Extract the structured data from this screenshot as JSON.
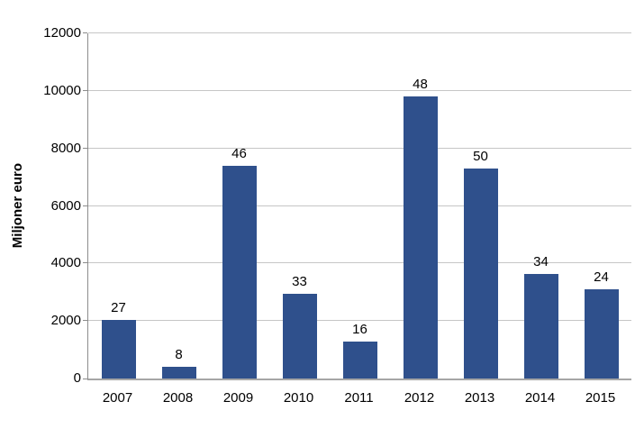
{
  "chart_data": {
    "type": "bar",
    "title": "",
    "xlabel": "",
    "ylabel": "Miljoner euro",
    "categories": [
      "2007",
      "2008",
      "2009",
      "2010",
      "2011",
      "2012",
      "2013",
      "2014",
      "2015"
    ],
    "values": [
      2050,
      400,
      7400,
      2950,
      1300,
      9800,
      7300,
      3650,
      3100
    ],
    "bar_labels": [
      "27",
      "8",
      "46",
      "33",
      "16",
      "48",
      "50",
      "34",
      "24"
    ],
    "ylim": [
      0,
      12000
    ],
    "ytick_interval": 2000,
    "ytick_labels": [
      "0",
      "2000",
      "4000",
      "6000",
      "8000",
      "10000",
      "12000"
    ],
    "grid": "horizontal",
    "legend": "none",
    "bar_color": "#2F508C",
    "gridline_color": "#C6C6C6",
    "axis_color": "#8C8C8C",
    "text_color": "#000000",
    "background_color": "#FFFFFF"
  }
}
